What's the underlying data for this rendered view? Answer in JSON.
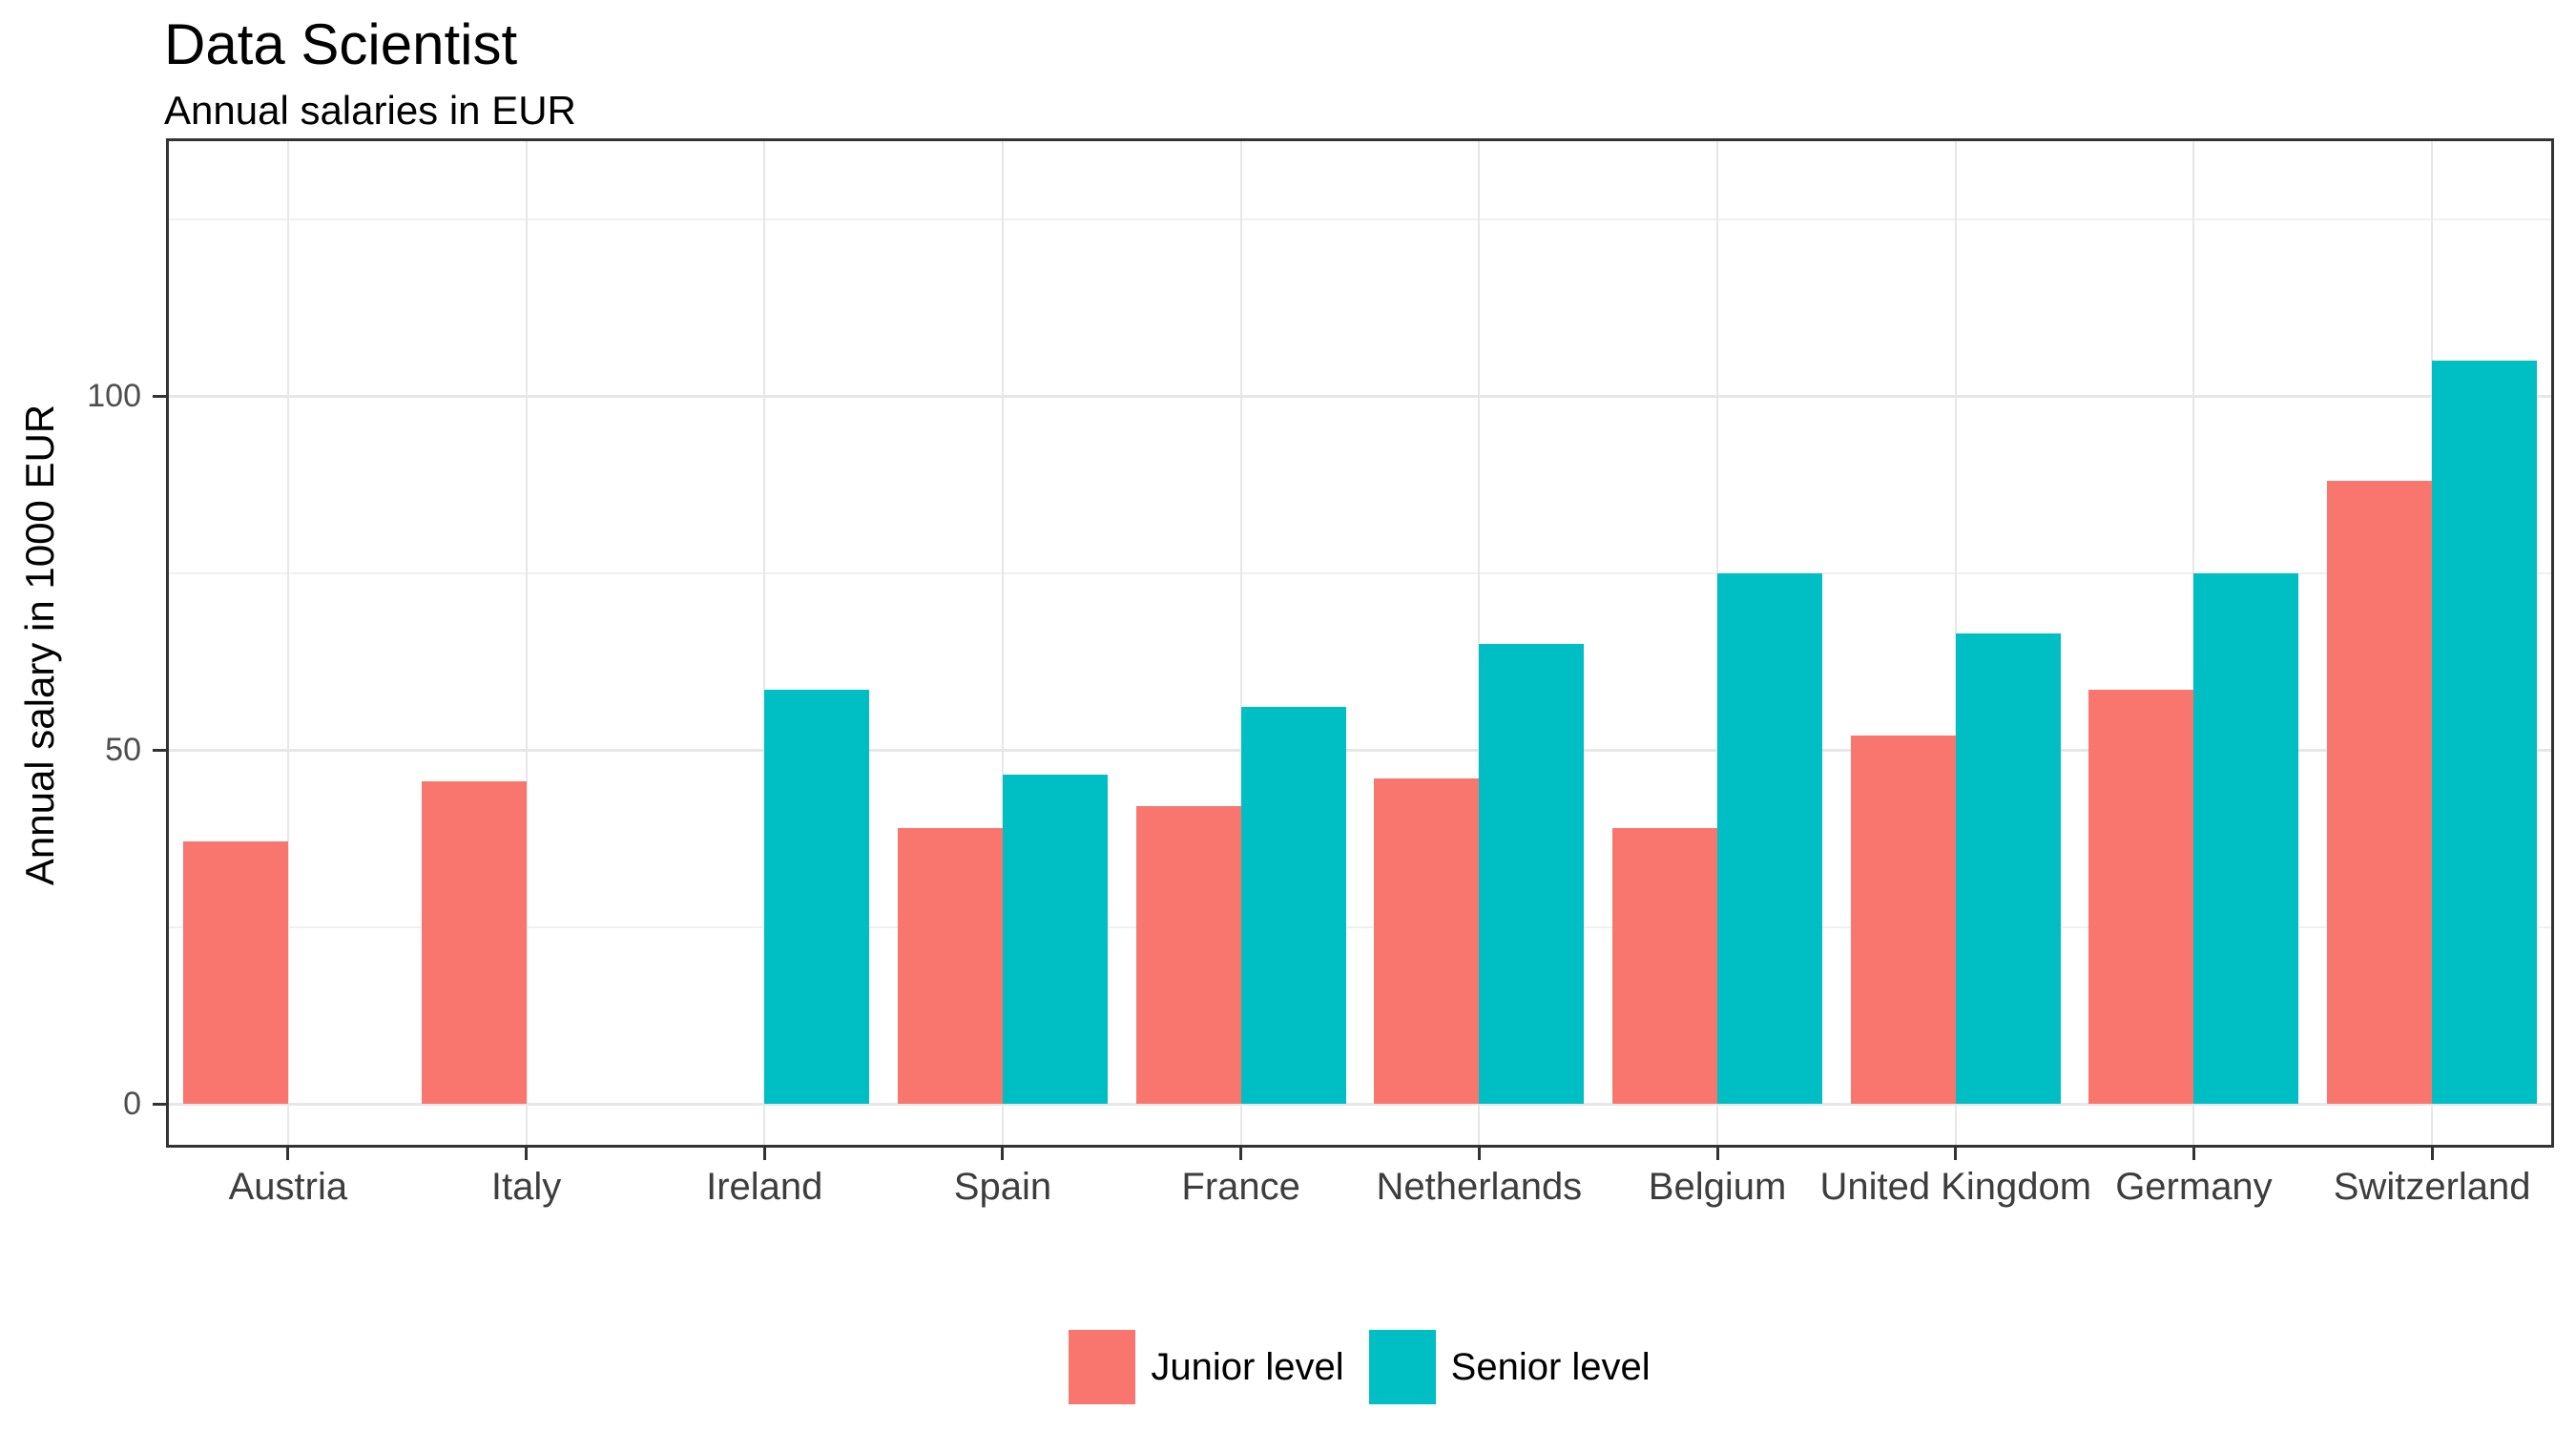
{
  "title": "Data Scientist",
  "subtitle": "Annual salaries in EUR",
  "y_axis": {
    "label": "Annual salary in 1000 EUR",
    "tick_labels": [
      "0",
      "50",
      "100"
    ]
  },
  "x_axis": {
    "tick_labels": [
      "Austria",
      "Italy",
      "Ireland",
      "Spain",
      "France",
      "Netherlands",
      "Belgium",
      "United Kingdom",
      "Germany",
      "Switzerland"
    ]
  },
  "legend": {
    "position": "bottom",
    "items": [
      {
        "label": "Junior level",
        "color": "#F8766D"
      },
      {
        "label": "Senior level",
        "color": "#00BFC4"
      }
    ]
  },
  "colors": {
    "junior": "#F8766D",
    "senior": "#00BFC4",
    "axis_line": "#333333",
    "grid_major": "#E7E7E9",
    "grid_minor": "#F0F0F2",
    "y_tick_text": "#4D4D4D",
    "x_tick_text": "#3D3D3D",
    "background": "#FFFFFF"
  },
  "chart_data": {
    "type": "bar",
    "bar_layout": "dodged",
    "title": "Data Scientist",
    "subtitle": "Annual salaries in EUR",
    "xlabel": "",
    "ylabel": "Annual salary in 1000 EUR",
    "categories": [
      "Austria",
      "Italy",
      "Ireland",
      "Spain",
      "France",
      "Netherlands",
      "Belgium",
      "United Kingdom",
      "Germany",
      "Switzerland"
    ],
    "series": [
      {
        "name": "Junior level",
        "color": "#F8766D",
        "values": [
          37,
          45.5,
          null,
          39,
          42,
          46,
          39,
          52,
          58.5,
          88
        ]
      },
      {
        "name": "Senior level",
        "color": "#00BFC4",
        "values": [
          null,
          null,
          58.5,
          46.5,
          56,
          65,
          75,
          66.5,
          75,
          105
        ]
      }
    ],
    "y_ticks": [
      0,
      50,
      100
    ],
    "y_minor_ticks": [
      25,
      75,
      125
    ],
    "ylim_visible": [
      -6,
      136
    ],
    "grid": true,
    "legend_position": "bottom"
  }
}
